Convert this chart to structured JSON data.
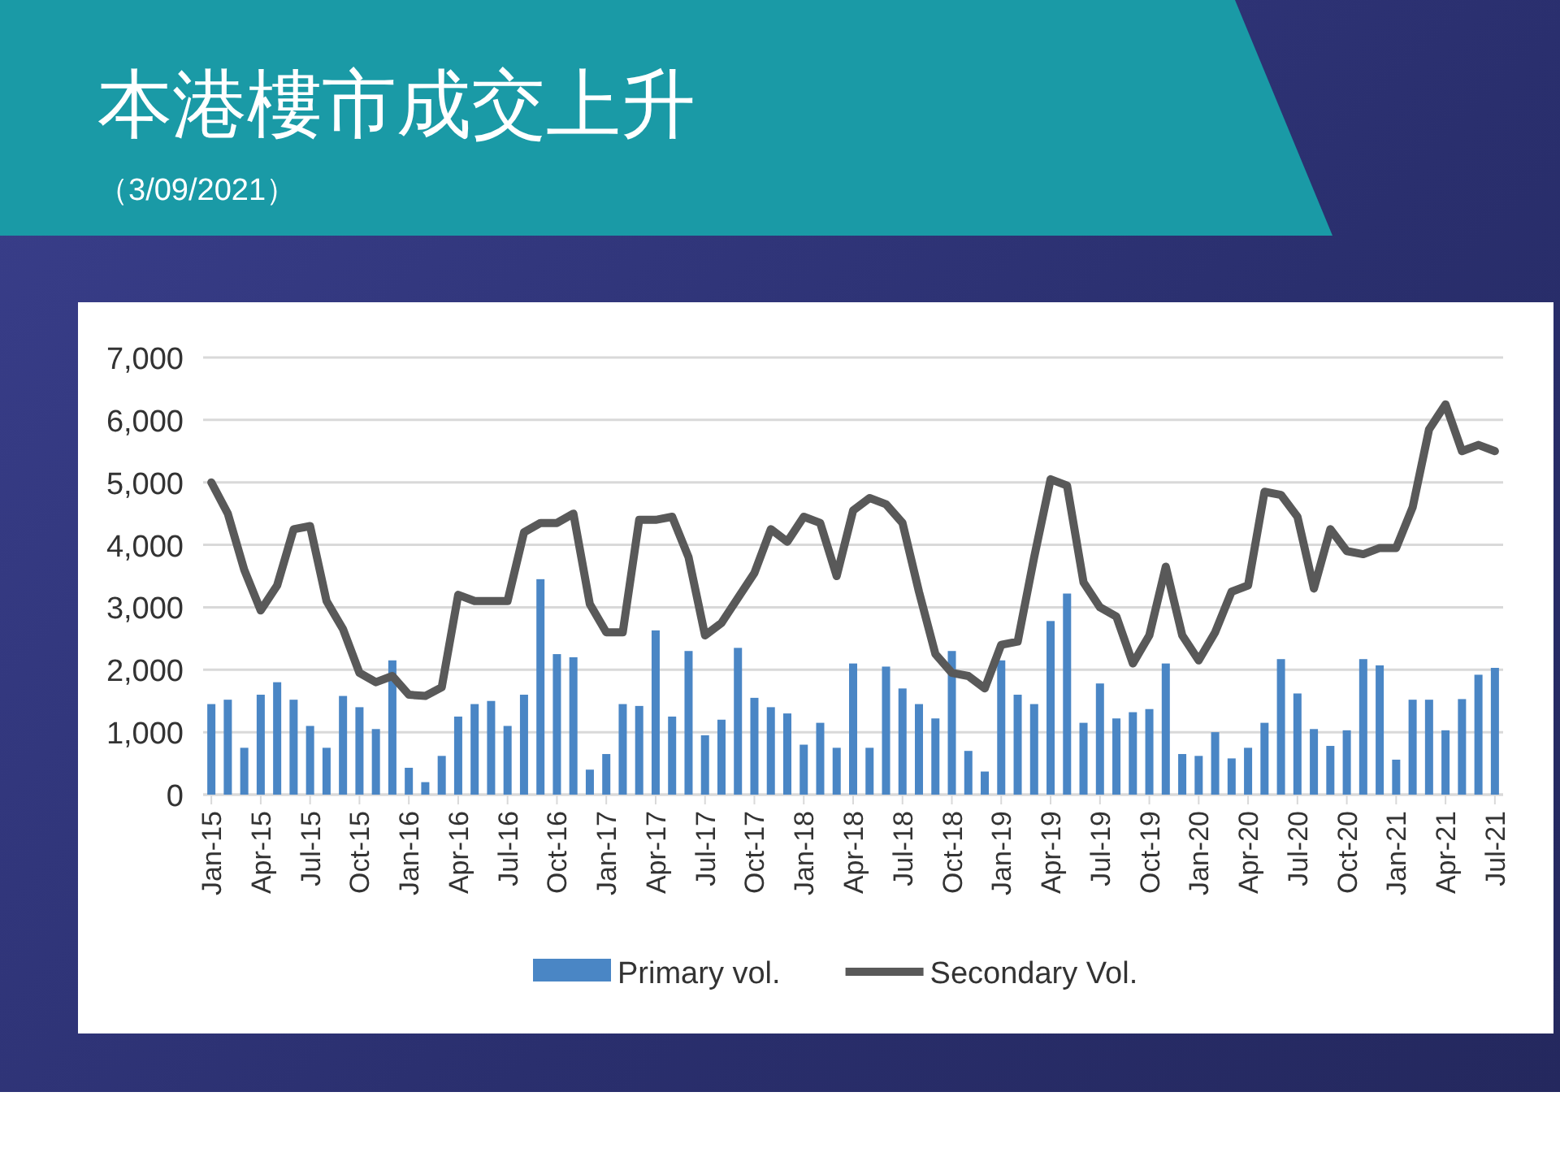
{
  "chart_data": {
    "type": "bar",
    "title": "本港樓市成交上升",
    "subtitle": "（3/09/2021）",
    "categories": [
      "Jan-15",
      null,
      null,
      "Apr-15",
      null,
      null,
      "Jul-15",
      null,
      null,
      "Oct-15",
      null,
      null,
      "Jan-16",
      null,
      null,
      "Apr-16",
      null,
      null,
      "Jul-16",
      null,
      null,
      "Oct-16",
      null,
      null,
      "Jan-17",
      null,
      null,
      "Apr-17",
      null,
      null,
      "Jul-17",
      null,
      null,
      "Oct-17",
      null,
      null,
      "Jan-18",
      null,
      null,
      "Apr-18",
      null,
      null,
      "Jul-18",
      null,
      null,
      "Oct-18",
      null,
      null,
      "Jan-19",
      null,
      null,
      "Apr-19",
      null,
      null,
      "Jul-19",
      null,
      null,
      "Oct-19",
      null,
      null,
      "Jan-20",
      null,
      null,
      "Apr-20",
      null,
      null,
      "Jul-20",
      null,
      null,
      "Oct-20",
      null,
      null,
      "Jan-21",
      null,
      null,
      "Apr-21",
      null,
      null,
      "Jul-21"
    ],
    "series": [
      {
        "name": "Primary vol.",
        "color": "#4a86c5",
        "values": [
          1450,
          1520,
          750,
          1600,
          1800,
          1520,
          1100,
          750,
          1580,
          1400,
          1050,
          2150,
          430,
          200,
          620,
          1250,
          1450,
          1500,
          1100,
          1600,
          3450,
          2250,
          2200,
          400,
          650,
          1450,
          1420,
          2630,
          1250,
          2300,
          950,
          1200,
          2350,
          1550,
          1400,
          1300,
          800,
          1150,
          750,
          2100,
          750,
          2050,
          1700,
          1450,
          1220,
          2300,
          700,
          370,
          2150,
          1600,
          1450,
          2780,
          3220,
          1150,
          1780,
          1220,
          1320,
          1370,
          2100,
          650,
          620,
          1000,
          580,
          750,
          1150,
          2170,
          1620,
          1050,
          780,
          1030,
          2170,
          2070,
          560,
          1520,
          1520,
          1030,
          1530,
          1920,
          2030
        ]
      },
      {
        "name": "Secondary Vol.",
        "type": "line",
        "color": "#595959",
        "values": [
          5000,
          4500,
          3600,
          2950,
          3350,
          4250,
          4300,
          3100,
          2650,
          1950,
          1800,
          1900,
          1600,
          1580,
          1720,
          3200,
          3100,
          3100,
          3100,
          4200,
          4350,
          4350,
          4500,
          3050,
          2600,
          2600,
          4400,
          4400,
          4450,
          3800,
          2550,
          2750,
          3150,
          3550,
          4250,
          4050,
          4450,
          4350,
          3500,
          4550,
          4750,
          4650,
          4350,
          3250,
          2250,
          1950,
          1900,
          1700,
          2400,
          2450,
          3800,
          5050,
          4950,
          3400,
          3000,
          2850,
          2100,
          2550,
          3650,
          2550,
          2150,
          2600,
          3250,
          3350,
          4850,
          4800,
          4450,
          3300,
          4250,
          3900,
          3850,
          3950,
          3950,
          4600,
          5850,
          6250,
          5500,
          5600,
          5500
        ]
      }
    ],
    "ylim": [
      0,
      7000
    ],
    "yticks": [
      0,
      {
        "value": 1000,
        "label": "1,000"
      },
      {
        "value": 2000,
        "label": "2,000"
      },
      {
        "value": 3000,
        "label": "3,000"
      },
      {
        "value": 4000,
        "label": "4,000"
      },
      {
        "value": 5000,
        "label": "5,000"
      },
      {
        "value": 6000,
        "label": "6,000"
      },
      {
        "value": 7000,
        "label": "7,000"
      }
    ],
    "grid": "y",
    "legend": "bottom"
  }
}
